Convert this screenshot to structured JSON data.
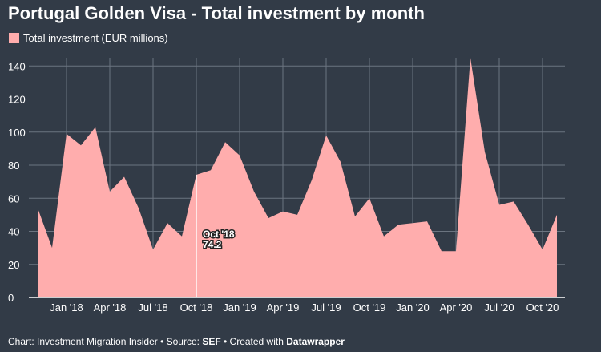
{
  "title": "Portugal Golden Visa - Total investment by month",
  "legend_label": "Total investment (EUR millions)",
  "footer": {
    "chart_prefix": "Chart: Investment Migration Insider • Source: ",
    "source": "SEF",
    "mid": " • Created with ",
    "tool": "Datawrapper"
  },
  "tooltip": {
    "label": "Oct '18",
    "value": "74.2"
  },
  "colors": {
    "background": "#323b47",
    "area": "#ffadad",
    "grid": "#6b7480",
    "highlight": "#ffe6e6"
  },
  "chart_data": {
    "type": "area",
    "title": "Portugal Golden Visa - Total investment by month",
    "xlabel": "",
    "ylabel": "",
    "ylim": [
      0,
      145
    ],
    "yticks": [
      0,
      20,
      40,
      60,
      80,
      100,
      120,
      140
    ],
    "grid": true,
    "legend_position": "top-left",
    "x": [
      "2017-11",
      "2017-12",
      "2018-01",
      "2018-02",
      "2018-03",
      "2018-04",
      "2018-05",
      "2018-06",
      "2018-07",
      "2018-08",
      "2018-09",
      "2018-10",
      "2018-11",
      "2018-12",
      "2019-01",
      "2019-02",
      "2019-03",
      "2019-04",
      "2019-05",
      "2019-06",
      "2019-07",
      "2019-08",
      "2019-09",
      "2019-10",
      "2019-11",
      "2019-12",
      "2020-01",
      "2020-02",
      "2020-03",
      "2020-04",
      "2020-05",
      "2020-06",
      "2020-07",
      "2020-08",
      "2020-09",
      "2020-10",
      "2020-11"
    ],
    "xtick_labels": [
      {
        "index": 2,
        "label": "Jan '18"
      },
      {
        "index": 5,
        "label": "Apr '18"
      },
      {
        "index": 8,
        "label": "Jul '18"
      },
      {
        "index": 11,
        "label": "Oct '18"
      },
      {
        "index": 14,
        "label": "Jan '19"
      },
      {
        "index": 17,
        "label": "Apr '19"
      },
      {
        "index": 20,
        "label": "Jul '19"
      },
      {
        "index": 23,
        "label": "Oct '19"
      },
      {
        "index": 26,
        "label": "Jan '20"
      },
      {
        "index": 29,
        "label": "Apr '20"
      },
      {
        "index": 32,
        "label": "Jul '20"
      },
      {
        "index": 35,
        "label": "Oct '20"
      }
    ],
    "series": [
      {
        "name": "Total investment (EUR millions)",
        "values": [
          54,
          30,
          99,
          92,
          103,
          64,
          73,
          54,
          29,
          45,
          37,
          74.2,
          77,
          94,
          86,
          64,
          48,
          52,
          50,
          71,
          98,
          82,
          49,
          60,
          37,
          44,
          45,
          46,
          28,
          28,
          145,
          88,
          56,
          58,
          44,
          29,
          50
        ]
      }
    ],
    "highlight_index": 11
  }
}
